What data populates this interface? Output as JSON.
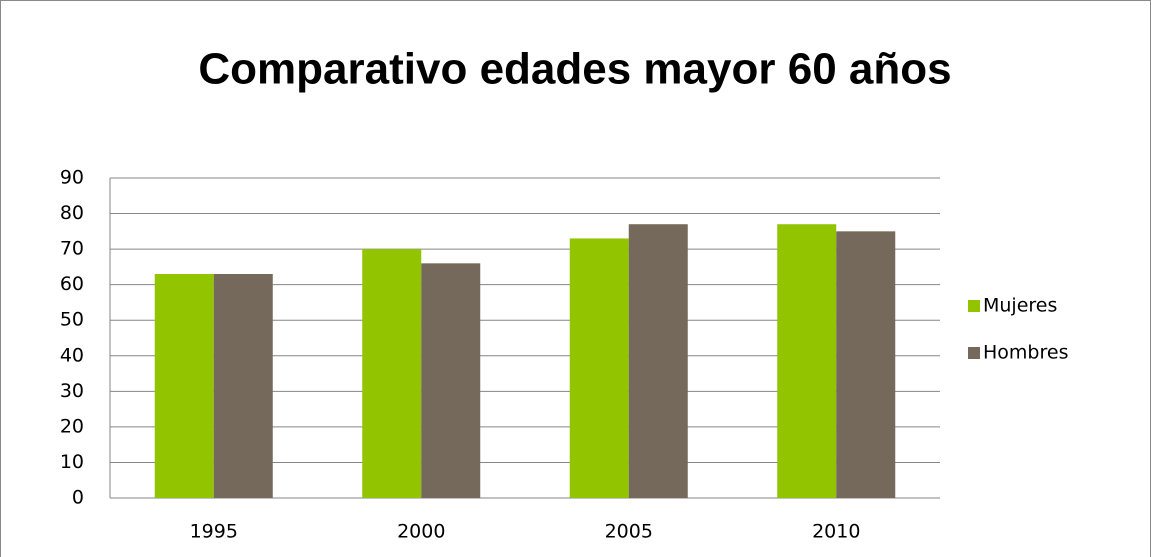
{
  "chart_data": {
    "type": "bar",
    "title": "Comparativo edades mayor 60 años",
    "categories": [
      "1995",
      "2000",
      "2005",
      "2010"
    ],
    "series": [
      {
        "name": "Mujeres",
        "color": "#92c400",
        "values": [
          63,
          70,
          73,
          77
        ]
      },
      {
        "name": "Hombres",
        "color": "#74695b",
        "values": [
          63,
          66,
          77,
          75
        ]
      }
    ],
    "ylim": [
      0,
      90
    ],
    "yticks": [
      0,
      10,
      20,
      30,
      40,
      50,
      60,
      70,
      80,
      90
    ],
    "grid": true,
    "legend": "right"
  }
}
